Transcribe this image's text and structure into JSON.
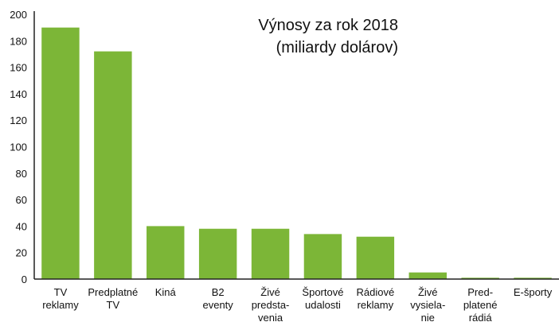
{
  "chart_data": {
    "type": "bar",
    "title": "Výnosy za rok 2018",
    "subtitle": "(miliardy dolárov)",
    "categories": [
      [
        "TV",
        "reklamy"
      ],
      [
        "Predplatné",
        "TV"
      ],
      [
        "Kiná"
      ],
      [
        "B2",
        "eventy"
      ],
      [
        "Živé",
        "predsta-",
        "venia"
      ],
      [
        "Športové",
        "udalosti"
      ],
      [
        "Rádiové",
        "reklamy"
      ],
      [
        "Živé",
        "vysiela-",
        "nie"
      ],
      [
        "Pred-",
        "platené",
        "rádiá"
      ],
      [
        "E-športy"
      ]
    ],
    "values": [
      190,
      172,
      40,
      38,
      38,
      34,
      32,
      5,
      1,
      1
    ],
    "color": "#7cb637",
    "ylim": [
      0,
      200
    ],
    "yticks": [
      0,
      20,
      40,
      60,
      80,
      100,
      120,
      140,
      160,
      180,
      200
    ],
    "grid": false
  }
}
